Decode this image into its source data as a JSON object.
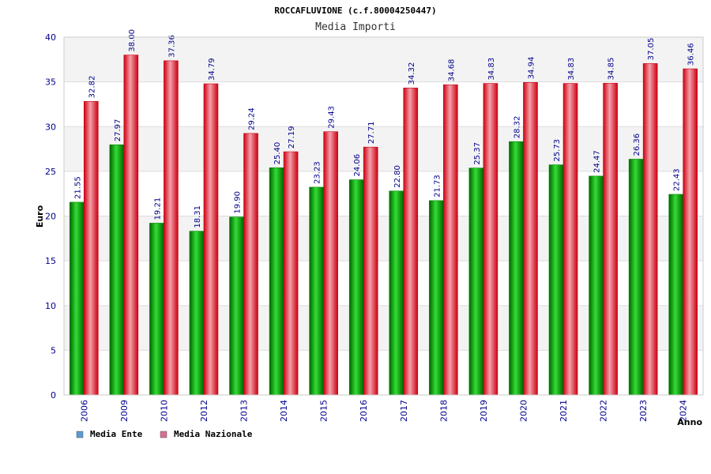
{
  "chart_data": {
    "type": "bar",
    "title": "ROCCAFLUVIONE (c.f.80004250447)",
    "subtitle": "Media Importi",
    "xlabel": "Anno",
    "ylabel": "Euro",
    "ylim": [
      0,
      40
    ],
    "yticks": [
      "0",
      "5",
      "10",
      "15",
      "20",
      "25",
      "30",
      "35",
      "40"
    ],
    "grid": true,
    "legend_position": "bottom-left",
    "categories": [
      "2006",
      "2009",
      "2010",
      "2012",
      "2013",
      "2014",
      "2015",
      "2016",
      "2017",
      "2018",
      "2019",
      "2020",
      "2021",
      "2022",
      "2023",
      "2024"
    ],
    "series": [
      {
        "name": "Media Ente",
        "legend_color": "#5b9bd5",
        "bar_color": "#00aa00",
        "values": [
          21.55,
          27.97,
          19.21,
          18.31,
          19.9,
          25.4,
          23.23,
          24.06,
          22.8,
          21.73,
          25.37,
          28.32,
          25.73,
          24.47,
          26.36,
          22.43
        ],
        "labels": [
          "21.55",
          "27.97",
          "19.21",
          "18.31",
          "19.90",
          "25.40",
          "23.23",
          "24.06",
          "22.80",
          "21.73",
          "25.37",
          "28.32",
          "25.73",
          "24.47",
          "26.36",
          "22.43"
        ]
      },
      {
        "name": "Media Nazionale",
        "legend_color": "#d87093",
        "bar_color": "#ee1c2b",
        "values": [
          32.82,
          38.0,
          37.36,
          34.79,
          29.24,
          27.19,
          29.43,
          27.71,
          34.32,
          34.68,
          34.83,
          34.94,
          34.83,
          34.85,
          37.05,
          36.46
        ],
        "labels": [
          "32.82",
          "38.00",
          "37.36",
          "34.79",
          "29.24",
          "27.19",
          "29.43",
          "27.71",
          "34.32",
          "34.68",
          "34.83",
          "34.94",
          "34.83",
          "34.85",
          "37.05",
          "36.46"
        ]
      }
    ]
  }
}
